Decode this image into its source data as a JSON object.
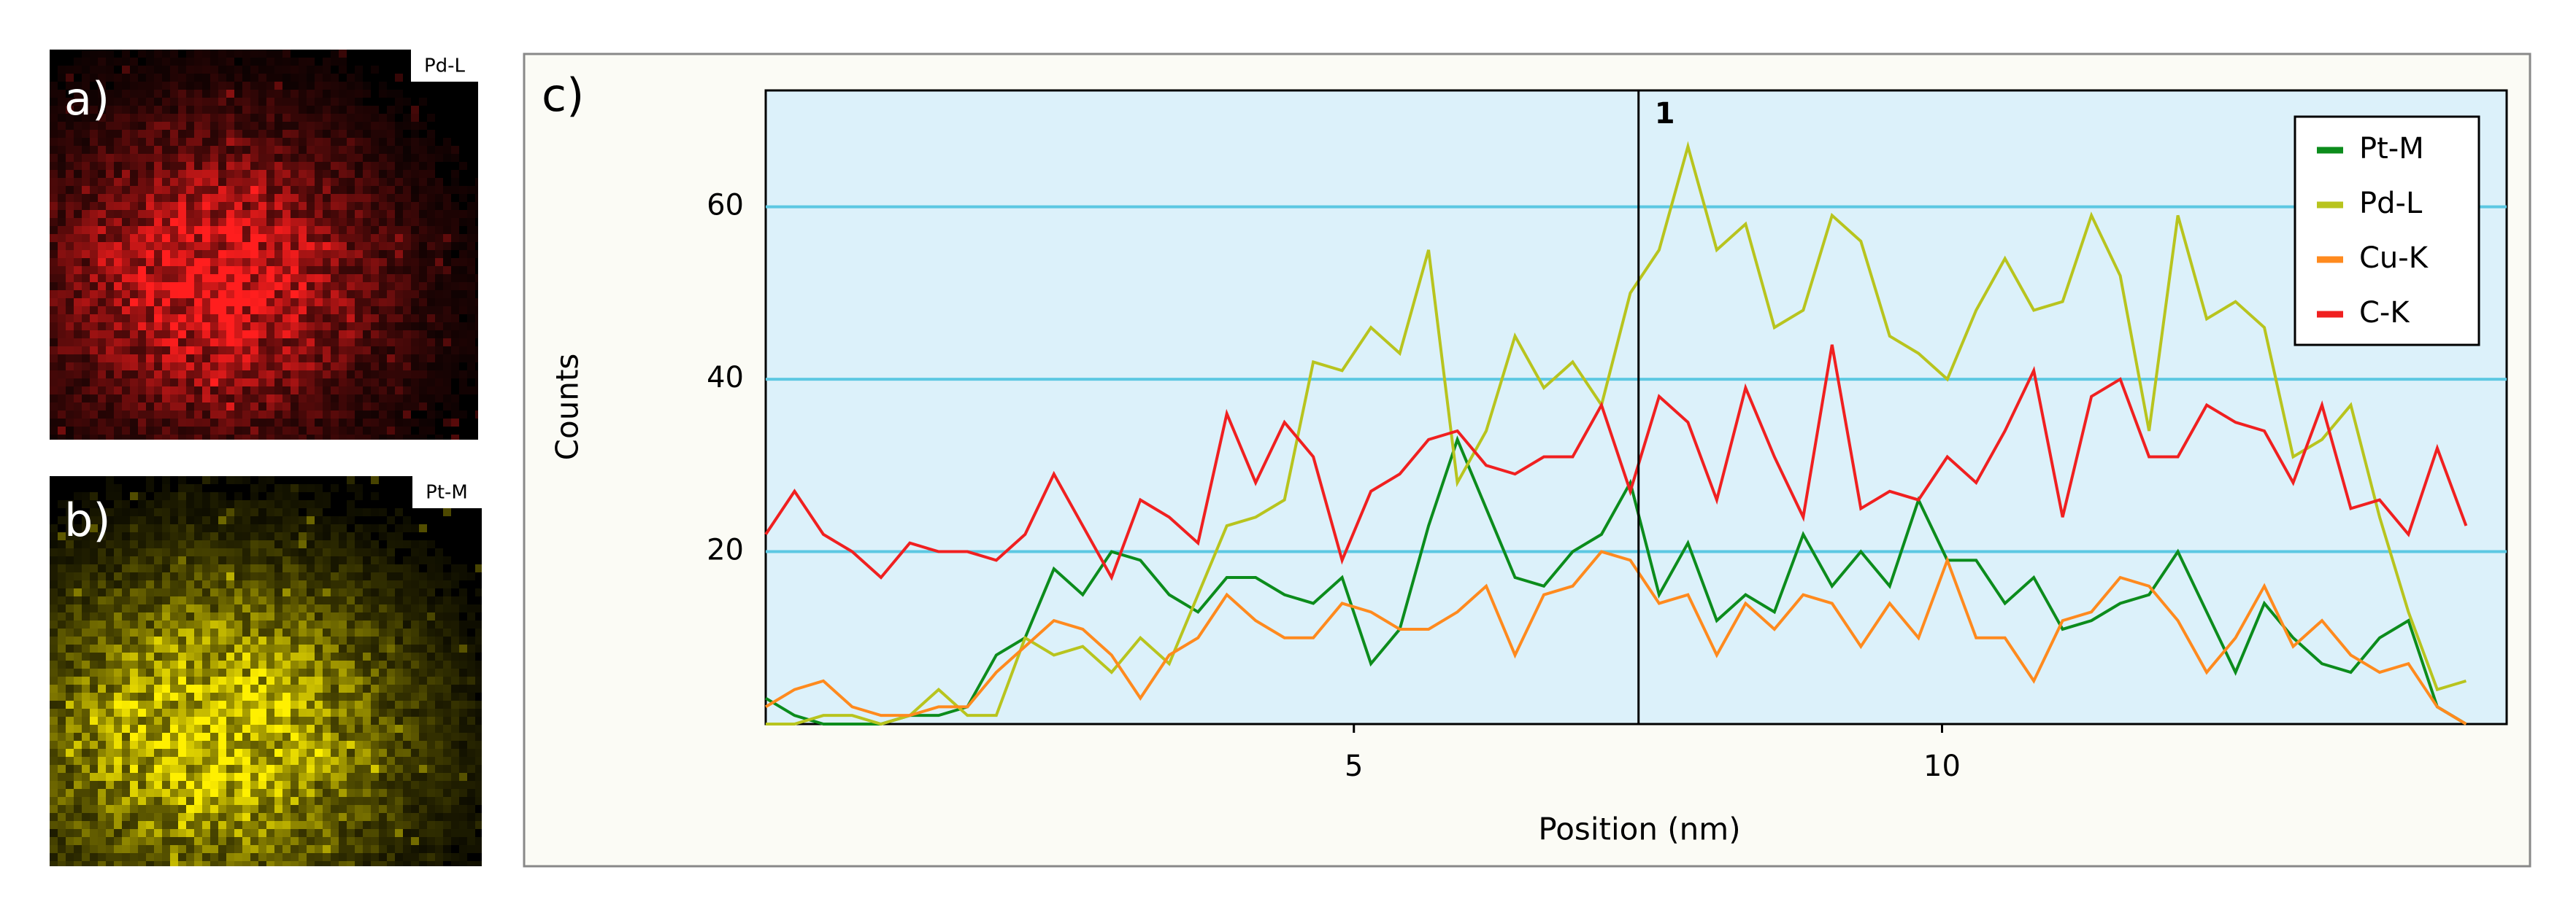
{
  "panels": {
    "a": {
      "label": "a)",
      "tag": "Pd-L"
    },
    "b": {
      "label": "b)",
      "tag": "Pt-M"
    }
  },
  "chart_data": {
    "type": "line",
    "label": "c)",
    "xlabel": "Position (nm)",
    "ylabel": "Counts",
    "x": [
      0,
      0.245,
      0.49,
      0.735,
      0.98,
      1.225,
      1.47,
      1.715,
      1.96,
      2.205,
      2.45,
      2.695,
      2.94,
      3.185,
      3.43,
      3.675,
      3.92,
      4.165,
      4.41,
      4.655,
      4.9,
      5.145,
      5.39,
      5.635,
      5.88,
      6.125,
      6.37,
      6.615,
      6.86,
      7.105,
      7.35,
      7.595,
      7.84,
      8.085,
      8.33,
      8.575,
      8.82,
      9.065,
      9.31,
      9.555,
      9.8,
      10.045,
      10.29,
      10.535,
      10.78,
      11.025,
      11.27,
      11.515,
      11.76,
      12.005,
      12.25,
      12.495,
      12.74,
      12.985,
      13.23,
      13.475,
      13.72,
      13.965,
      14.21,
      14.455
    ],
    "series": [
      {
        "name": "Pt-M",
        "color": "#0c8c1c",
        "values": [
          3,
          1,
          0,
          0,
          0,
          1,
          1,
          2,
          8,
          10,
          18,
          15,
          20,
          19,
          15,
          13,
          17,
          17,
          15,
          14,
          17,
          7,
          11,
          23,
          33,
          25,
          17,
          16,
          20,
          22,
          28,
          15,
          21,
          12,
          15,
          13,
          22,
          16,
          20,
          16,
          26,
          19,
          19,
          14,
          17,
          11,
          12,
          14,
          15,
          20,
          13,
          6,
          14,
          10,
          7,
          6,
          10,
          12,
          2,
          0
        ]
      },
      {
        "name": "Pd-L",
        "color": "#b8c41e",
        "values": [
          0,
          0,
          1,
          1,
          0,
          1,
          4,
          1,
          1,
          10,
          8,
          9,
          6,
          10,
          7,
          15,
          23,
          24,
          26,
          42,
          41,
          46,
          43,
          55,
          28,
          34,
          45,
          39,
          42,
          37,
          50,
          55,
          67,
          55,
          58,
          46,
          48,
          59,
          56,
          45,
          43,
          40,
          48,
          54,
          48,
          49,
          59,
          52,
          34,
          59,
          47,
          49,
          46,
          31,
          33,
          37,
          24,
          13,
          4,
          5
        ]
      },
      {
        "name": "Cu-K",
        "color": "#ff8a1e",
        "values": [
          2,
          4,
          5,
          2,
          1,
          1,
          2,
          2,
          6,
          9,
          12,
          11,
          8,
          3,
          8,
          10,
          15,
          12,
          10,
          10,
          14,
          13,
          11,
          11,
          13,
          16,
          8,
          15,
          16,
          20,
          19,
          14,
          15,
          8,
          14,
          11,
          15,
          14,
          9,
          14,
          10,
          19,
          10,
          10,
          5,
          12,
          13,
          17,
          16,
          12,
          6,
          10,
          16,
          9,
          12,
          8,
          6,
          7,
          2,
          0
        ]
      },
      {
        "name": "C-K",
        "color": "#f02020",
        "values": [
          22,
          27,
          22,
          20,
          17,
          21,
          20,
          20,
          19,
          22,
          29,
          23,
          17,
          26,
          24,
          21,
          36,
          28,
          35,
          31,
          19,
          27,
          29,
          33,
          34,
          30,
          29,
          31,
          31,
          37,
          27,
          38,
          35,
          26,
          39,
          31,
          24,
          44,
          25,
          27,
          26,
          31,
          28,
          34,
          41,
          24,
          38,
          40,
          31,
          31,
          37,
          35,
          34,
          28,
          37,
          25,
          26,
          22,
          32,
          23
        ]
      }
    ],
    "xlim": [
      0,
      14.8
    ],
    "xticks": [
      5,
      10
    ],
    "ylim": [
      0,
      73.5
    ],
    "yticks": [
      20,
      40,
      60
    ],
    "grid": true,
    "legend": "upper right",
    "cursor": {
      "x": 7.42,
      "label": "1"
    }
  }
}
